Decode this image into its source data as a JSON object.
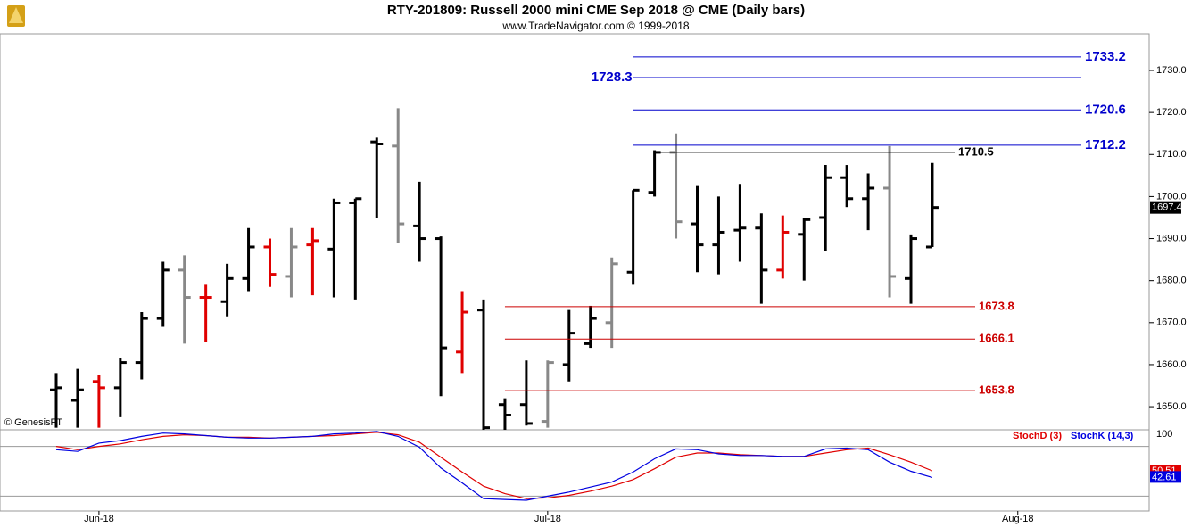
{
  "chart_data": [
    {
      "type": "ohlc",
      "title": "RTY-201809:  Russell 2000 mini CME Sep 2018 @ CME  (Daily bars)",
      "subtitle": "www.TradeNavigator.com © 1999-2018",
      "annotation": "© GenesisFT",
      "categories": [
        null,
        null,
        "Jun-18",
        null,
        null,
        null,
        null,
        null,
        null,
        null,
        null,
        null,
        null,
        null,
        null,
        null,
        null,
        null,
        null,
        null,
        null,
        null,
        null,
        "Jul-18",
        null,
        null,
        null,
        null,
        null,
        null,
        null,
        null,
        null,
        null,
        null,
        null,
        null,
        null,
        null,
        null,
        null,
        null,
        null,
        null,
        null,
        "Aug-18",
        null
      ],
      "open": [
        1654.0,
        1651.5,
        1656.0,
        1654.5,
        1660.5,
        1671.0,
        1682.5,
        1676.0,
        1675.0,
        1680.5,
        1688.0,
        1681.0,
        1688.5,
        1687.5,
        1698.5,
        1713.0,
        1712.0,
        1693.0,
        1690.0,
        1663.0,
        1673.0,
        1650.5,
        1650.5,
        1646.5,
        1660.0,
        1665.0,
        1670.0,
        1682.0,
        1701.0,
        1710.5,
        1693.5,
        1688.5,
        1692.0,
        1692.5,
        1682.5,
        1691.0,
        1695.0,
        1704.5,
        1699.5,
        1702.0,
        1680.5,
        1688.0,
        null,
        null,
        null,
        null,
        null
      ],
      "high": [
        1658.0,
        1659.0,
        1657.5,
        1661.5,
        1672.5,
        1684.5,
        1686.0,
        1679.0,
        1684.0,
        1692.5,
        1690.0,
        1692.5,
        1692.5,
        1699.5,
        1699.5,
        1714.0,
        1721.0,
        1703.5,
        1690.5,
        1677.5,
        1675.5,
        1652.0,
        1661.0,
        1661.0,
        1673.0,
        1674.0,
        1685.5,
        1701.5,
        1711.0,
        1715.0,
        1702.5,
        1700.0,
        1703.0,
        1696.0,
        1695.5,
        1695.0,
        1707.5,
        1707.5,
        1705.5,
        1712.0,
        1691.0,
        1708.0,
        null,
        null,
        null,
        null,
        null
      ],
      "low": [
        1645.0,
        1645.0,
        1645.0,
        1647.5,
        1656.5,
        1669.0,
        1665.0,
        1665.5,
        1671.5,
        1677.5,
        1678.5,
        1676.0,
        1676.5,
        1676.0,
        1675.5,
        1695.0,
        1689.0,
        1684.5,
        1652.5,
        1658.0,
        1644.5,
        1644.5,
        1645.5,
        1645.0,
        1656.0,
        1664.0,
        1664.0,
        1679.0,
        1700.0,
        1690.0,
        1682.0,
        1681.5,
        1684.5,
        1674.5,
        1680.5,
        1680.0,
        1687.0,
        1697.5,
        1692.0,
        1676.0,
        1674.5,
        1688.0,
        null,
        null,
        null,
        null,
        null
      ],
      "close": [
        1654.5,
        1654.0,
        1654.5,
        1660.5,
        1671.0,
        1682.5,
        1676.0,
        1676.0,
        1680.5,
        1688.0,
        1681.5,
        1688.0,
        1689.5,
        1698.5,
        1699.5,
        1712.5,
        1693.5,
        1690.0,
        1664.0,
        1672.5,
        1645.0,
        1648.0,
        1646.0,
        1660.5,
        1667.5,
        1671.0,
        1684.0,
        1701.5,
        1710.5,
        1694.0,
        1688.5,
        1691.5,
        1692.5,
        1682.5,
        1691.5,
        1694.5,
        1704.5,
        1699.5,
        1702.0,
        1681.0,
        1690.0,
        1697.4,
        null,
        null,
        null,
        null,
        null
      ],
      "colors": [
        "#000000",
        "#000000",
        "#e00000",
        "#000000",
        "#000000",
        "#000000",
        "#888888",
        "#e00000",
        "#000000",
        "#000000",
        "#e00000",
        "#888888",
        "#e00000",
        "#000000",
        "#000000",
        "#000000",
        "#888888",
        "#000000",
        "#000000",
        "#e00000",
        "#000000",
        "#000000",
        "#000000",
        "#888888",
        "#000000",
        "#000000",
        "#888888",
        "#000000",
        "#000000",
        "#888888",
        "#000000",
        "#000000",
        "#000000",
        "#000000",
        "#e00000",
        "#000000",
        "#000000",
        "#000000",
        "#000000",
        "#888888",
        "#000000",
        "#000000",
        null,
        null,
        null,
        null,
        null
      ],
      "ylim": [
        1644.5,
        1738.7
      ],
      "yticks": [
        {
          "value": 1650,
          "label": "1650.0"
        },
        {
          "value": 1660,
          "label": "1660.0"
        },
        {
          "value": 1670,
          "label": "1670.0"
        },
        {
          "value": 1680,
          "label": "1680.0"
        },
        {
          "value": 1690,
          "label": "1690.0"
        },
        {
          "value": 1700,
          "label": "1700.0"
        },
        {
          "value": 1710,
          "label": "1710.0"
        },
        {
          "value": 1720,
          "label": "1720.0"
        },
        {
          "value": 1730,
          "label": "1730.0"
        }
      ],
      "resistance": [
        {
          "value": 1733.2,
          "label_side": "right"
        },
        {
          "value": 1728.3,
          "label_side": "left"
        },
        {
          "value": 1720.6,
          "label_side": "right"
        },
        {
          "value": 1712.2,
          "label_side": "right"
        }
      ],
      "resistance_color": "#0000cc",
      "pivot": [
        1710.5
      ],
      "pivot_color": "#000000",
      "support": [
        1673.8,
        1666.1,
        1653.8
      ],
      "support_color": "#cc0000"
    },
    {
      "type": "line",
      "series": [
        {
          "name": "StochD (3)",
          "color": "#e00000",
          "values": [
            80,
            76,
            80,
            83,
            88,
            92,
            94,
            93,
            91,
            91,
            90,
            91,
            92,
            93,
            95,
            97,
            94,
            85,
            67,
            49,
            32,
            23,
            17,
            18,
            21,
            26,
            32,
            40,
            53,
            67,
            72,
            72,
            70,
            69,
            68,
            68,
            72,
            76,
            78,
            70,
            61,
            50.51,
            null,
            null,
            null,
            null,
            null
          ]
        },
        {
          "name": "StochK (14,3)",
          "color": "#0000e0",
          "values": [
            76,
            74,
            84,
            87,
            92,
            96,
            95,
            93,
            91,
            90,
            90,
            91,
            92,
            95,
            96,
            98,
            92,
            79,
            54,
            36,
            17,
            16,
            15,
            20,
            25,
            31,
            37,
            49,
            65,
            77,
            76,
            71,
            69,
            69,
            68,
            68,
            77,
            78,
            76,
            61,
            50,
            42.61,
            null,
            null,
            null,
            null,
            null
          ]
        }
      ],
      "ylim": [
        0,
        100
      ],
      "yticks": [
        100
      ],
      "levels": [
        80,
        20
      ]
    }
  ]
}
